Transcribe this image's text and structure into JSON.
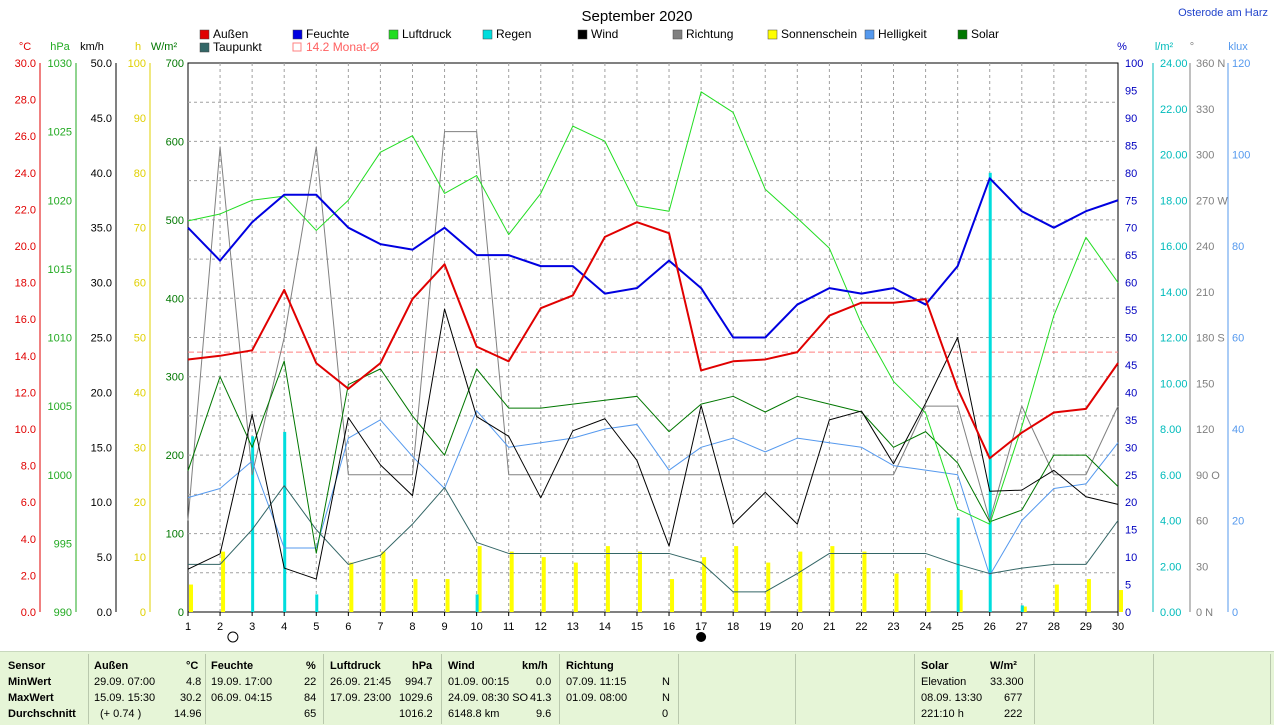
{
  "header": {
    "title": "September 2020",
    "location": "Osterode am Harz"
  },
  "legend": [
    {
      "label": "Außen",
      "color": "#e00000"
    },
    {
      "label": "Feuchte",
      "color": "#0000e0"
    },
    {
      "label": "Luftdruck",
      "color": "#22dd22"
    },
    {
      "label": "Regen",
      "color": "#00dddd"
    },
    {
      "label": "Wind",
      "color": "#000000"
    },
    {
      "label": "Richtung",
      "color": "#808080"
    },
    {
      "label": "Sonnenschein",
      "color": "#ffff00"
    },
    {
      "label": "Helligkeit",
      "color": "#5599ee"
    },
    {
      "label": "Solar",
      "color": "#007700"
    },
    {
      "label": "Taupunkt",
      "color": "#336666"
    },
    {
      "label": "14.2 Monat-Ø",
      "color": "#ff8080"
    }
  ],
  "axes": {
    "temp": {
      "unit": "°C",
      "color": "#e00000",
      "ticks": [
        "30.0",
        "28.0",
        "26.0",
        "24.0",
        "22.0",
        "20.0",
        "18.0",
        "16.0",
        "14.0",
        "12.0",
        "10.0",
        "8.0",
        "6.0",
        "4.0",
        "2.0",
        "0.0"
      ]
    },
    "pressure": {
      "unit": "hPa",
      "color": "#22aa22",
      "ticks": [
        "1030",
        "1025",
        "1020",
        "1015",
        "1010",
        "1005",
        "1000",
        "995",
        "990"
      ]
    },
    "wind": {
      "unit": "km/h",
      "color": "#000000",
      "ticks": [
        "50.0",
        "45.0",
        "40.0",
        "35.0",
        "30.0",
        "25.0",
        "20.0",
        "15.0",
        "10.0",
        "5.0",
        "0.0"
      ]
    },
    "sun": {
      "unit": "h",
      "color": "#e0d000",
      "ticks": [
        "100",
        "90",
        "80",
        "70",
        "60",
        "50",
        "40",
        "30",
        "20",
        "10",
        "0"
      ]
    },
    "solar": {
      "unit": "W/m²",
      "color": "#007700",
      "ticks": [
        "700",
        "600",
        "500",
        "400",
        "300",
        "200",
        "100",
        "0"
      ]
    },
    "humidity": {
      "unit": "%",
      "color": "#0000c0",
      "ticks": [
        "100",
        "95",
        "90",
        "85",
        "80",
        "75",
        "70",
        "65",
        "60",
        "55",
        "50",
        "45",
        "40",
        "35",
        "30",
        "25",
        "20",
        "15",
        "10",
        "5",
        "0"
      ]
    },
    "rain": {
      "unit": "l/m²",
      "color": "#00bbbb",
      "ticks": [
        "24.00",
        "22.00",
        "20.00",
        "18.00",
        "16.00",
        "14.00",
        "12.00",
        "10.00",
        "8.00",
        "6.00",
        "4.00",
        "2.00",
        "0.00"
      ]
    },
    "direction": {
      "unit": "°",
      "color": "#808080",
      "ticks": [
        "360 N",
        "330",
        "300",
        "270 W",
        "240",
        "210",
        "180 S",
        "150",
        "120",
        "90 O",
        "60",
        "30",
        "0 N"
      ]
    },
    "lux": {
      "unit": "klux",
      "color": "#5599ee",
      "ticks": [
        "120",
        "100",
        "80",
        "60",
        "40",
        "20",
        "0"
      ]
    }
  },
  "chart_data": {
    "type": "line",
    "title": "September 2020",
    "x": [
      1,
      2,
      3,
      4,
      5,
      6,
      7,
      8,
      9,
      10,
      11,
      12,
      13,
      14,
      15,
      16,
      17,
      18,
      19,
      20,
      21,
      22,
      23,
      24,
      25,
      26,
      27,
      28,
      29,
      30
    ],
    "monthly_mean_temp": 14.2,
    "moon_phases": [
      {
        "day": 2.4,
        "phase": "full"
      },
      {
        "day": 17.0,
        "phase": "new"
      }
    ],
    "series": [
      {
        "name": "Außen",
        "unit": "°C",
        "values": [
          13.8,
          14.0,
          14.3,
          17.6,
          13.6,
          12.2,
          13.6,
          17.1,
          19.0,
          14.5,
          13.7,
          16.6,
          17.3,
          20.5,
          21.3,
          20.7,
          13.2,
          13.7,
          13.8,
          14.2,
          16.2,
          16.9,
          16.9,
          17.1,
          12.2,
          8.4,
          9.8,
          10.9,
          11.1,
          13.6
        ]
      },
      {
        "name": "Feuchte",
        "unit": "%",
        "values": [
          70,
          64,
          71,
          76,
          76,
          70,
          67,
          66,
          70,
          65,
          65,
          63,
          63,
          58,
          59,
          64,
          59,
          50,
          50,
          56,
          59,
          58,
          59,
          56,
          63,
          79,
          73,
          70,
          73,
          75
        ]
      },
      {
        "name": "Luftdruck",
        "unit": "hPa",
        "values": [
          1018.5,
          1019.0,
          1020.0,
          1020.3,
          1017.8,
          1020.0,
          1023.5,
          1024.7,
          1020.5,
          1021.8,
          1017.5,
          1020.5,
          1025.4,
          1024.3,
          1019.6,
          1019.2,
          1027.9,
          1026.4,
          1020.8,
          1018.7,
          1016.5,
          1011.0,
          1006.8,
          1004.5,
          997.5,
          996.4,
          1003.5,
          1011.6,
          1017.3,
          1014.0
        ]
      },
      {
        "name": "Regen",
        "unit": "l/m²",
        "values": [
          0,
          0,
          8.0,
          8.2,
          0.8,
          0,
          0,
          0,
          0,
          0.8,
          0,
          0,
          0,
          0,
          0,
          0,
          0,
          0,
          0,
          0,
          0,
          0,
          0,
          0,
          4.3,
          20.0,
          0.3,
          0,
          0,
          0
        ]
      },
      {
        "name": "Wind",
        "unit": "km/h",
        "values": [
          3.9,
          5.3,
          18.0,
          4.0,
          3.0,
          17.7,
          13.4,
          10.6,
          27.6,
          17.8,
          16.0,
          10.4,
          16.5,
          17.6,
          13.8,
          6.0,
          18.8,
          8.0,
          10.9,
          8.0,
          17.5,
          18.3,
          13.5,
          19.0,
          25.0,
          11.0,
          11.1,
          12.9,
          10.5,
          9.8
        ]
      },
      {
        "name": "Richtung",
        "unit": "°",
        "values": [
          60,
          305,
          90,
          180,
          305,
          90,
          90,
          90,
          315,
          315,
          90,
          90,
          90,
          90,
          90,
          90,
          90,
          90,
          90,
          90,
          90,
          90,
          90,
          135,
          135,
          60,
          135,
          90,
          90,
          135
        ]
      },
      {
        "name": "Sonnenschein",
        "unit": "h",
        "values": [
          5,
          11,
          0,
          0,
          0,
          9,
          11,
          6,
          6,
          12,
          11,
          10,
          9,
          12,
          11,
          6,
          10,
          12,
          9,
          11,
          12,
          11,
          7,
          8,
          4,
          0,
          1,
          5,
          6,
          4
        ]
      },
      {
        "name": "Helligkeit",
        "unit": "klux",
        "values": [
          25,
          27,
          33,
          14,
          14,
          38,
          42,
          34,
          27,
          44,
          36,
          37,
          38,
          40,
          41,
          31,
          36,
          38,
          35,
          38,
          37,
          36,
          32,
          31,
          30,
          8,
          20,
          27,
          28,
          37
        ]
      },
      {
        "name": "Solar",
        "unit": "W/m²",
        "values": [
          180,
          300,
          210,
          320,
          75,
          290,
          310,
          250,
          200,
          310,
          260,
          260,
          265,
          270,
          275,
          230,
          265,
          275,
          255,
          275,
          265,
          255,
          210,
          230,
          190,
          115,
          130,
          200,
          200,
          160
        ]
      },
      {
        "name": "Taupunkt",
        "unit": "°C",
        "values": [
          2.6,
          2.6,
          4.5,
          6.9,
          4.5,
          2.6,
          3.1,
          4.8,
          6.8,
          3.8,
          3.2,
          3.2,
          3.2,
          3.2,
          3.2,
          3.2,
          2.7,
          1.1,
          1.1,
          2.1,
          3.2,
          3.2,
          3.2,
          3.2,
          2.6,
          2.1,
          2.4,
          2.6,
          2.6,
          5.0
        ]
      }
    ]
  },
  "stats": {
    "sensor": {
      "header": "Sensor",
      "rows": [
        "MinWert",
        "MaxWert",
        "Durchschnitt"
      ]
    },
    "aussen": {
      "header": "Außen",
      "unit": "°C",
      "rows": [
        [
          "29.09.  07:00",
          "4.8"
        ],
        [
          "15.09.  15:30",
          "30.2"
        ],
        [
          "(+ 0.74 )",
          "14.96"
        ]
      ]
    },
    "feuchte": {
      "header": "Feuchte",
      "unit": "%",
      "rows": [
        [
          "19.09.  17:00",
          "22"
        ],
        [
          "06.09.  04:15",
          "84"
        ],
        [
          "",
          "65"
        ]
      ]
    },
    "luftdruck": {
      "header": "Luftdruck",
      "unit": "hPa",
      "rows": [
        [
          "26.09.  21:45",
          "994.7"
        ],
        [
          "17.09.  23:00",
          "1029.6"
        ],
        [
          "",
          "1016.2"
        ]
      ]
    },
    "wind": {
      "header": "Wind",
      "unit": "km/h",
      "rows": [
        [
          "01.09.  00:15",
          "0.0"
        ],
        [
          "24.09.  08:30 SO",
          "41.3"
        ],
        [
          "6148.8 km",
          "9.6"
        ]
      ]
    },
    "richtung": {
      "header": "Richtung",
      "rows": [
        [
          "07.09.  11:15",
          "N"
        ],
        [
          "01.09.  08:00",
          "N"
        ],
        [
          "",
          "0"
        ]
      ]
    },
    "solar": {
      "header": "Solar",
      "unit": "W/m²",
      "rows": [
        [
          "Elevation",
          "33.300"
        ],
        [
          "08.09.  13:30",
          "677"
        ],
        [
          "221:10 h",
          "222"
        ]
      ]
    }
  }
}
